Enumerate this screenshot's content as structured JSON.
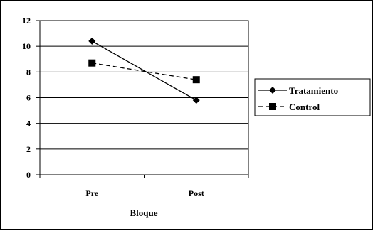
{
  "chart_data": {
    "type": "line",
    "categories": [
      "Pre",
      "Post"
    ],
    "series": [
      {
        "name": "Tratamiento",
        "values": [
          10.4,
          5.8
        ],
        "color": "#000000",
        "line": "solid",
        "marker": "diamond"
      },
      {
        "name": "Control",
        "values": [
          8.7,
          7.4
        ],
        "color": "#000000",
        "line": "dashed",
        "marker": "square"
      }
    ],
    "title": "",
    "xlabel": "Bloque",
    "ylabel": "",
    "ylim": [
      0,
      12
    ],
    "yticks": [
      "0",
      "2",
      "4",
      "6",
      "8",
      "10",
      "12"
    ],
    "grid": true,
    "legend": "right"
  }
}
